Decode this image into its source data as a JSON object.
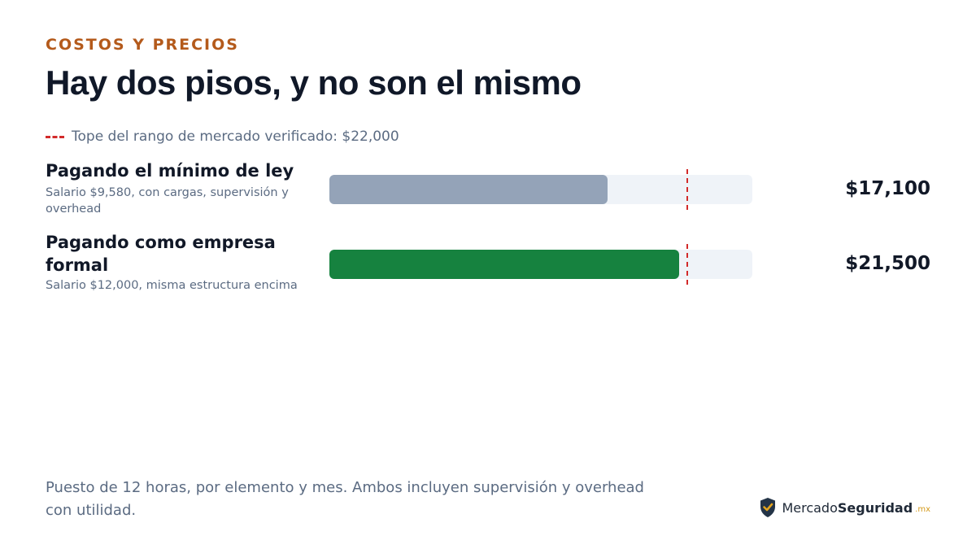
{
  "header": {
    "eyebrow": "COSTOS Y PRECIOS",
    "title": "Hay dos pisos, y no son el mismo"
  },
  "legend": {
    "reference_label": "Tope del rango de mercado verificado: $22,000",
    "reference_color": "#d22a2a"
  },
  "chart_data": {
    "type": "bar",
    "orientation": "horizontal",
    "categories": [
      "Pagando el mínimo de ley",
      "Pagando como empresa formal"
    ],
    "subtitles": [
      "Salario $9,580, con cargas, supervisión y overhead",
      "Salario $12,000, misma estructura encima"
    ],
    "values": [
      17100,
      21500
    ],
    "value_labels": [
      "$17,100",
      "$21,500"
    ],
    "bar_colors": [
      "#94a3b8",
      "#16823f"
    ],
    "reference_value": 22000,
    "xlim": [
      0,
      26000
    ],
    "grid": false
  },
  "footnote": "Puesto de 12 horas, por elemento y mes. Ambos incluyen supervisión y overhead con utilidad.",
  "brand": {
    "part1": "Mercado",
    "part2": "Seguridad",
    "suffix": ".mx",
    "logo_icon": "shield-check-icon"
  }
}
